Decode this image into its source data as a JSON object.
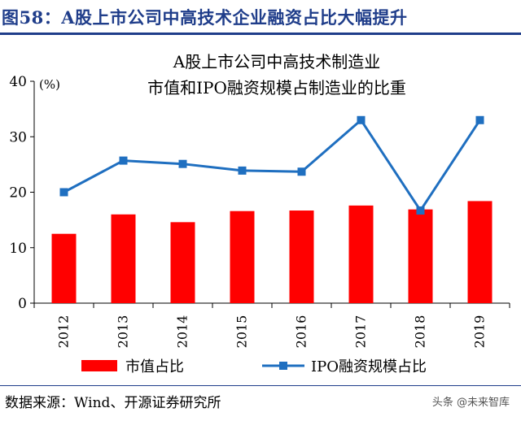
{
  "figure": {
    "title": "图58：A股上市公司中高技术企业融资占比大幅提升",
    "source": "数据来源：Wind、开源证券研究所",
    "watermark": "头条 @未来智库"
  },
  "colors": {
    "bar": "#ff0000",
    "line": "#1f6fc0",
    "heading": "#1f3d8a"
  },
  "chart_data": {
    "type": "bar",
    "title_line1": "A股上市公司中高技术制造业",
    "title_line2": "市值和IPO融资规模占制造业的比重",
    "ylabel": "(%)",
    "ylim": [
      0,
      40
    ],
    "yticks": [
      "0",
      "10",
      "20",
      "30",
      "40"
    ],
    "grid": false,
    "legend_position": "bottom",
    "categories": [
      "2012",
      "2013",
      "2014",
      "2015",
      "2016",
      "2017",
      "2018",
      "2019"
    ],
    "series": [
      {
        "name": "市值占比",
        "type": "bar",
        "values": [
          12.5,
          16.0,
          14.6,
          16.6,
          16.7,
          17.6,
          16.9,
          18.4
        ]
      },
      {
        "name": "IPO融资规模占比",
        "type": "line",
        "marker": "square",
        "values": [
          20.0,
          25.7,
          25.1,
          23.9,
          23.7,
          33.0,
          16.7,
          33.0
        ]
      }
    ]
  }
}
